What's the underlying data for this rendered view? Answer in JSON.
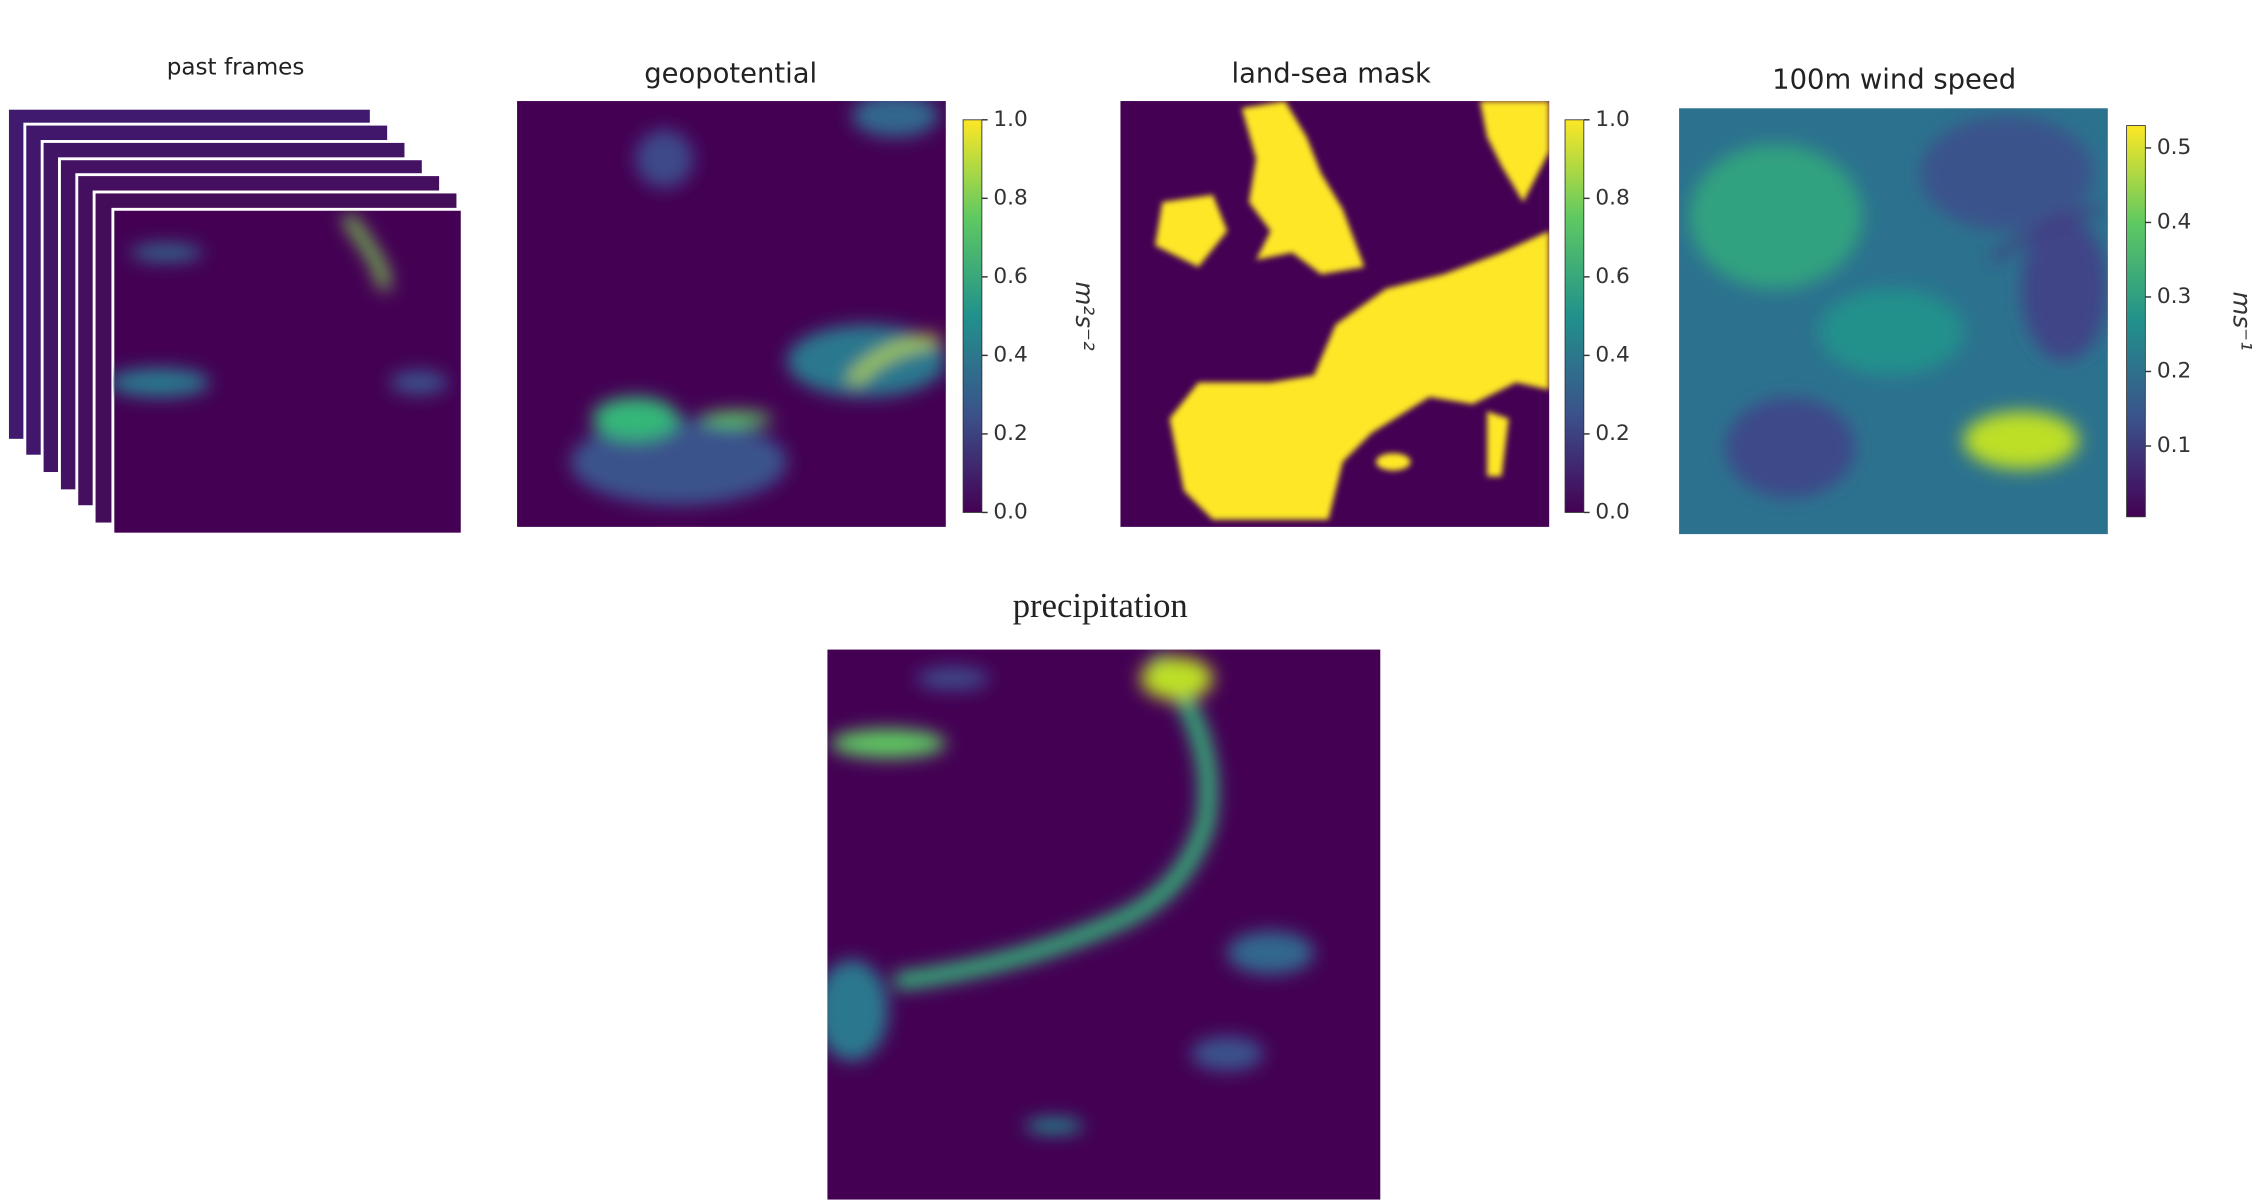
{
  "panels": [
    {
      "title": "past frames"
    },
    {
      "title": "geopotential",
      "colorbar": {
        "lim": [
          0,
          1
        ],
        "unit": "m²s⁻²",
        "ticks": [
          {
            "value": 0,
            "label": "0.0"
          },
          {
            "value": 0.2,
            "label": "0.2"
          },
          {
            "value": 0.4,
            "label": "0.4"
          },
          {
            "value": 0.6,
            "label": "0.6"
          },
          {
            "value": 0.8,
            "label": "0.8"
          },
          {
            "value": 1,
            "label": "1.0"
          }
        ]
      }
    },
    {
      "title": "land-sea mask",
      "colorbar": {
        "lim": [
          0,
          1
        ],
        "ticks": [
          {
            "value": 0,
            "label": "0.0"
          },
          {
            "value": 0.2,
            "label": "0.2"
          },
          {
            "value": 0.4,
            "label": "0.4"
          },
          {
            "value": 0.6,
            "label": "0.6"
          },
          {
            "value": 0.8,
            "label": "0.8"
          },
          {
            "value": 1,
            "label": "1.0"
          }
        ]
      }
    },
    {
      "title": "100m wind speed",
      "colorbar": {
        "lim": [
          0.005,
          0.53
        ],
        "unit": "ms⁻¹",
        "ticks": [
          0.1,
          0.2,
          0.3,
          0.4,
          0.5
        ]
      }
    }
  ],
  "output": {
    "title": "precipitation"
  }
}
